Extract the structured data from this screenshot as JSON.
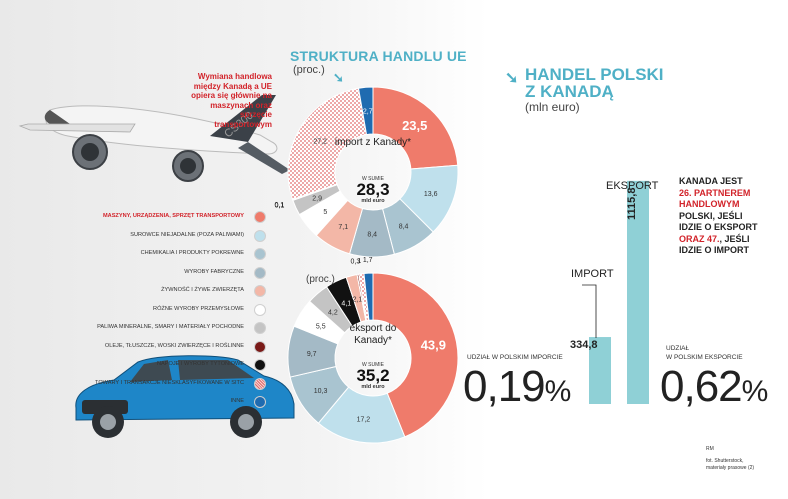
{
  "colors": {
    "accent": "#4fb0c6",
    "red": "#d2232a",
    "bar": "#8fd0d6",
    "dark_red_donut": "#e87a6a"
  },
  "headings": {
    "ue_title": "STRUKTURA HANDLU UE",
    "ue_unit": "(proc.)",
    "pl_title_line1": "HANDEL POLSKI",
    "pl_title_line2": "Z KANADĄ",
    "pl_unit": "(mln euro)",
    "export_unit": "(proc.)"
  },
  "note": "Wymiana handlowa między Kanadą a UE opiera się głównie na maszynach oraz sprzęcie transportowym",
  "kanada_note": {
    "line1": "KANADA JEST",
    "line2": "26. PARTNEREM",
    "line3": "HANDLOWYM",
    "line4": "POLSKI, JEŚLI",
    "line5": "IDZIE O EKSPORT",
    "line6": "ORAZ 47.",
    "line6b": ", JEŚLI",
    "line7": "IDZIE O IMPORT"
  },
  "shares": {
    "import_label_line1": "UDZIAŁ W POLSKIM IMPORCIE",
    "import_value": "0,19",
    "export_label_line1": "UDZIAŁ",
    "export_label_line2": "W POLSKIM EKSPORCIE",
    "export_value": "0,62",
    "percent_sign": "%"
  },
  "credits": {
    "author": "RM",
    "source_line1": "fot. Shutterstock,",
    "source_line2": "materiały prasowe (2)"
  },
  "legend": [
    {
      "label": "MASZYNY, URZĄDZENIA, SPRZĘT TRANSPORTOWY",
      "color": "#ef7b6b"
    },
    {
      "label": "SUROWCE NIEJADALNE (POZA PALIWAMI)",
      "color": "#bfe0ec"
    },
    {
      "label": "CHEMIKALIA I PRODUKTY POKREWNE",
      "color": "#a9c4d0"
    },
    {
      "label": "WYROBY FABRYCZNE",
      "color": "#a4bac6"
    },
    {
      "label": "ŻYWNOŚĆ I ŻYWE ZWIERZĘTA",
      "color": "#f3b7a7"
    },
    {
      "label": "RÓŻNE WYROBY PRZEMYSŁOWE",
      "color": "#ffffff"
    },
    {
      "label": "PALIWA MINERALNE, SMARY I MATERIAŁY POCHODNE",
      "color": "#c4c4c4"
    },
    {
      "label": "OLEJE, TŁUSZCZE, WOSKI ZWIERZĘCE I ROŚLINNE",
      "color": "#7a1a18"
    },
    {
      "label": "NAPOJE I WYROBY TYTONIOWE",
      "color": "#111111"
    },
    {
      "label": "TOWARY I TRANSAKCJE NIESKLASYFIKOWANE W SITC",
      "color": "#f2c0c0"
    },
    {
      "label": "INNE",
      "color": "#1f6bb0"
    }
  ],
  "chart_data": [
    {
      "type": "pie",
      "title": "STRUKTURA HANDLU UE",
      "subtitle": "import z Kanady*",
      "unit": "(proc.)",
      "center_small": "W SUMIE",
      "center_value": "28,3",
      "center_unit": "mld euro",
      "categories": [
        "MASZYNY, URZĄDZENIA, SPRZĘT TRANSPORTOWY",
        "SUROWCE NIEJADALNE (POZA PALIWAMI)",
        "CHEMIKALIA I PRODUKTY POKREWNE",
        "WYROBY FABRYCZNE",
        "ŻYWNOŚĆ I ŻYWE ZWIERZĘTA",
        "RÓŻNE WYROBY PRZEMYSŁOWE",
        "PALIWA MINERALNE, SMARY I MATERIAŁY POCHODNE",
        "OLEJE, TŁUSZCZE, WOSKI ZWIERZĘCE I ROŚLINNE",
        "NAPOJE I WYROBY TYTONIOWE",
        "TOWARY I TRANSAKCJE NIESKLASYFIKOWANE W SITC",
        "INNE"
      ],
      "values": [
        23.5,
        13.6,
        8.4,
        8.4,
        7.1,
        5,
        2.9,
        0.1,
        0.1,
        27.2,
        2.7
      ],
      "labels": [
        "23,5",
        "13,6",
        "8,4",
        "8,4",
        "7,1",
        "5",
        "2,9",
        "0,1",
        "0,1",
        "27,2",
        "2,7"
      ]
    },
    {
      "type": "pie",
      "subtitle": "eksport do Kanady*",
      "unit": "(proc.)",
      "center_small": "W SUMIE",
      "center_value": "35,2",
      "center_unit": "mld euro",
      "categories": [
        "MASZYNY, URZĄDZENIA, SPRZĘT TRANSPORTOWY",
        "SUROWCE NIEJADALNE (POZA PALIWAMI)",
        "CHEMIKALIA I PRODUKTY POKREWNE",
        "WYROBY FABRYCZNE",
        "RÓŻNE WYROBY PRZEMYSŁOWE",
        "PALIWA MINERALNE, SMARY I MATERIAŁY POCHODNE",
        "NAPOJE I WYROBY TYTONIOWE",
        "ŻYWNOŚĆ I ŻYWE ZWIERZĘTA",
        "OLEJE, TŁUSZCZE, WOSKI ZWIERZĘCE I ROŚLINNE",
        "TOWARY I TRANSAKCJE NIESKLASYFIKOWANE W SITC",
        "INNE"
      ],
      "values": [
        43.9,
        17.2,
        10.3,
        9.7,
        5.5,
        4.2,
        4.1,
        2.1,
        0.3,
        1,
        1.7
      ],
      "labels": [
        "43,9",
        "17,2",
        "10,3",
        "9,7",
        "5,5",
        "4,2",
        "4,1",
        "2,1",
        "0,3",
        "1",
        "1,7"
      ]
    },
    {
      "type": "bar",
      "title": "HANDEL POLSKI Z KANADĄ",
      "unit": "(mln euro)",
      "categories": [
        "IMPORT",
        "EKSPORT"
      ],
      "values": [
        334.8,
        1115.8
      ],
      "labels": [
        "334,8",
        "1115,8"
      ]
    }
  ]
}
